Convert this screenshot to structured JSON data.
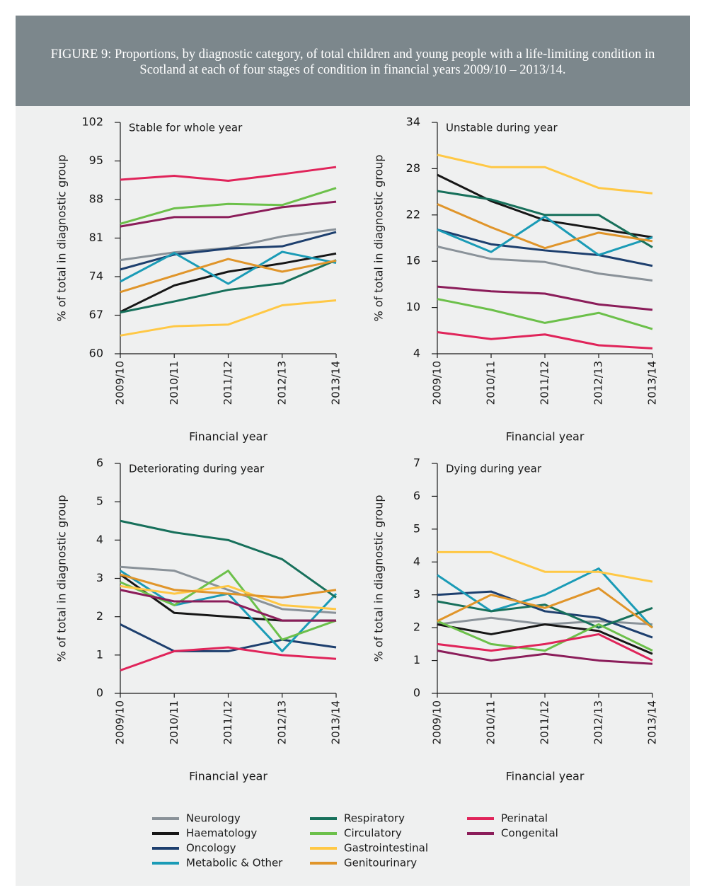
{
  "header": {
    "title": "FIGURE 9: Proportions, by diagnostic category, of total children and young people with a life-limiting condition in Scotland at each of four stages of condition in financial years 2009/10 – 2013/14."
  },
  "chart_data": [
    {
      "type": "line",
      "title": "Stable for whole year",
      "x_label": "Financial year",
      "y_label": "% of total in diagnostic group",
      "categories": [
        "2009/10",
        "2010/11",
        "2011/12",
        "2012/13",
        "2013/14"
      ],
      "ylim": [
        60,
        102
      ],
      "yticks": [
        60,
        67,
        74,
        81,
        88,
        95,
        102
      ],
      "series": [
        {
          "name": "Neurology",
          "color": "#8a9299",
          "values": [
            77,
            78.4,
            79.2,
            81.3,
            82.6
          ]
        },
        {
          "name": "Haematology",
          "color": "#161616",
          "values": [
            67.6,
            72.4,
            74.9,
            76.4,
            78.2
          ]
        },
        {
          "name": "Oncology",
          "color": "#1d3f6e",
          "values": [
            75.3,
            78,
            79.1,
            79.5,
            82.1
          ]
        },
        {
          "name": "Metabolic & Other",
          "color": "#1a9bb6",
          "values": [
            73.1,
            78.3,
            72.7,
            78.5,
            76.5
          ]
        },
        {
          "name": "Respiratory",
          "color": "#17705b",
          "values": [
            67.5,
            69.5,
            71.6,
            72.8,
            77
          ]
        },
        {
          "name": "Circulatory",
          "color": "#6cc04a",
          "values": [
            83.6,
            86.4,
            87.2,
            87,
            90.1
          ]
        },
        {
          "name": "Gastrointestinal",
          "color": "#ffc845",
          "values": [
            63.3,
            65,
            65.3,
            68.8,
            69.7
          ]
        },
        {
          "name": "Genitourinary",
          "color": "#e0952a",
          "values": [
            71.2,
            74.2,
            77.2,
            74.9,
            76.9
          ]
        },
        {
          "name": "Perinatal",
          "color": "#e0245a",
          "values": [
            91.6,
            92.3,
            91.4,
            92.6,
            93.9
          ]
        },
        {
          "name": "Congenital",
          "color": "#8b1d5a",
          "values": [
            83.1,
            84.8,
            84.8,
            86.6,
            87.6
          ]
        }
      ]
    },
    {
      "type": "line",
      "title": "Unstable during year",
      "x_label": "Financial year",
      "y_label": "% of total in diagnostic group",
      "categories": [
        "2009/10",
        "2010/11",
        "2011/12",
        "2012/13",
        "2013/14"
      ],
      "ylim": [
        4,
        34
      ],
      "yticks": [
        4,
        10,
        16,
        22,
        28,
        34
      ],
      "series": [
        {
          "name": "Neurology",
          "color": "#8a9299",
          "values": [
            17.9,
            16.3,
            15.9,
            14.4,
            13.5
          ]
        },
        {
          "name": "Haematology",
          "color": "#161616",
          "values": [
            27.2,
            23.8,
            21.3,
            20.2,
            19.1
          ]
        },
        {
          "name": "Oncology",
          "color": "#1d3f6e",
          "values": [
            20.1,
            18.2,
            17.4,
            16.8,
            15.4
          ]
        },
        {
          "name": "Metabolic & Other",
          "color": "#1a9bb6",
          "values": [
            20.1,
            17.2,
            21.8,
            16.8,
            19.1
          ]
        },
        {
          "name": "Respiratory",
          "color": "#17705b",
          "values": [
            25.1,
            24,
            22,
            22,
            17.8
          ]
        },
        {
          "name": "Circulatory",
          "color": "#6cc04a",
          "values": [
            11.1,
            9.7,
            8,
            9.3,
            7.2
          ]
        },
        {
          "name": "Gastrointestinal",
          "color": "#ffc845",
          "values": [
            29.8,
            28.2,
            28.2,
            25.5,
            24.8
          ]
        },
        {
          "name": "Genitourinary",
          "color": "#e0952a",
          "values": [
            23.4,
            20.4,
            17.7,
            19.7,
            18.6
          ]
        },
        {
          "name": "Perinatal",
          "color": "#e0245a",
          "values": [
            6.8,
            5.9,
            6.5,
            5.1,
            4.7
          ]
        },
        {
          "name": "Congenital",
          "color": "#8b1d5a",
          "values": [
            12.7,
            12.1,
            11.8,
            10.4,
            9.7
          ]
        }
      ]
    },
    {
      "type": "line",
      "title": "Deteriorating during year",
      "x_label": "Financial year",
      "y_label": "% of total in diagnostic group",
      "categories": [
        "2009/10",
        "2010/11",
        "2011/12",
        "2012/13",
        "2013/14"
      ],
      "ylim": [
        0,
        6
      ],
      "yticks": [
        0,
        1,
        2,
        3,
        4,
        5,
        6
      ],
      "series": [
        {
          "name": "Neurology",
          "color": "#8a9299",
          "values": [
            3.3,
            3.2,
            2.7,
            2.2,
            2.1
          ]
        },
        {
          "name": "Haematology",
          "color": "#161616",
          "values": [
            3.1,
            2.1,
            2.0,
            1.9,
            1.9
          ]
        },
        {
          "name": "Oncology",
          "color": "#1d3f6e",
          "values": [
            1.8,
            1.1,
            1.1,
            1.4,
            1.2
          ]
        },
        {
          "name": "Metabolic & Other",
          "color": "#1a9bb6",
          "values": [
            3.2,
            2.3,
            2.6,
            1.1,
            2.6
          ]
        },
        {
          "name": "Respiratory",
          "color": "#17705b",
          "values": [
            4.5,
            4.2,
            4.0,
            3.5,
            2.5
          ]
        },
        {
          "name": "Circulatory",
          "color": "#6cc04a",
          "values": [
            2.9,
            2.3,
            3.2,
            1.4,
            1.9
          ]
        },
        {
          "name": "Gastrointestinal",
          "color": "#ffc845",
          "values": [
            2.8,
            2.6,
            2.8,
            2.3,
            2.2
          ]
        },
        {
          "name": "Genitourinary",
          "color": "#e0952a",
          "values": [
            3.1,
            2.7,
            2.6,
            2.5,
            2.7
          ]
        },
        {
          "name": "Perinatal",
          "color": "#e0245a",
          "values": [
            0.6,
            1.1,
            1.2,
            1.0,
            0.9
          ]
        },
        {
          "name": "Congenital",
          "color": "#8b1d5a",
          "values": [
            2.7,
            2.4,
            2.4,
            1.9,
            1.9
          ]
        }
      ]
    },
    {
      "type": "line",
      "title": "Dying during year",
      "x_label": "Financial year",
      "y_label": "% of total in diagnostic group",
      "categories": [
        "2009/10",
        "2010/11",
        "2011/12",
        "2012/13",
        "2013/14"
      ],
      "ylim": [
        0,
        7
      ],
      "yticks": [
        0,
        1,
        2,
        3,
        4,
        5,
        6,
        7
      ],
      "series": [
        {
          "name": "Neurology",
          "color": "#8a9299",
          "values": [
            2.1,
            2.3,
            2.1,
            2.2,
            2.1
          ]
        },
        {
          "name": "Haematology",
          "color": "#161616",
          "values": [
            2.1,
            1.8,
            2.1,
            1.9,
            1.2
          ]
        },
        {
          "name": "Oncology",
          "color": "#1d3f6e",
          "values": [
            3.0,
            3.1,
            2.5,
            2.3,
            1.7
          ]
        },
        {
          "name": "Metabolic & Other",
          "color": "#1a9bb6",
          "values": [
            3.6,
            2.5,
            3.0,
            3.8,
            2.0
          ]
        },
        {
          "name": "Respiratory",
          "color": "#17705b",
          "values": [
            2.8,
            2.5,
            2.7,
            2.0,
            2.6
          ]
        },
        {
          "name": "Circulatory",
          "color": "#6cc04a",
          "values": [
            2.2,
            1.5,
            1.3,
            2.1,
            1.3
          ]
        },
        {
          "name": "Gastrointestinal",
          "color": "#ffc845",
          "values": [
            4.3,
            4.3,
            3.7,
            3.7,
            3.4
          ]
        },
        {
          "name": "Genitourinary",
          "color": "#e0952a",
          "values": [
            2.2,
            3.0,
            2.6,
            3.2,
            2.0
          ]
        },
        {
          "name": "Perinatal",
          "color": "#e0245a",
          "values": [
            1.5,
            1.3,
            1.5,
            1.8,
            1.0
          ]
        },
        {
          "name": "Congenital",
          "color": "#8b1d5a",
          "values": [
            1.3,
            1.0,
            1.2,
            1.0,
            0.9
          ]
        }
      ]
    }
  ]
}
